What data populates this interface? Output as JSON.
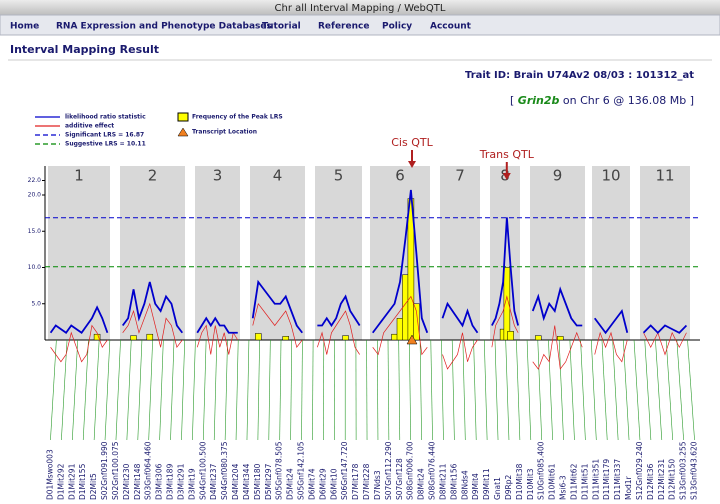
{
  "window_title": "Chr all Interval Mapping / WebQTL",
  "menu": [
    "Home",
    "RNA Expression and Phenotype Databases",
    "Tutorial",
    "Reference",
    "Policy",
    "Account"
  ],
  "page_title": "Interval Mapping Result",
  "trait_id": "Trait ID: Brain U74Av2 08/03 : 101312_at",
  "gene_line": {
    "prefix": "[",
    "gene": "Grin2b",
    "suffix": "on Chr 6 @ 136.08 Mb ]"
  },
  "chart_data": {
    "type": "line",
    "legend": [
      "likelihood ratio statistic",
      "additive effect",
      "Significant LRS = 16.87",
      "Suggestive LRS = 10.11",
      "Frequency of the Peak LRS",
      "Transcript Location"
    ],
    "significant": 16.87,
    "suggestive": 10.11,
    "annotations": [
      "Cis QTL",
      "Trans QTL"
    ],
    "ylim": [
      0,
      24
    ],
    "yticks": [
      {
        "value": 5,
        "label": "5.0"
      },
      {
        "value": 10,
        "label": "10.0"
      },
      {
        "value": 15,
        "label": "15.0"
      },
      {
        "value": 20,
        "label": "20.0"
      },
      {
        "value": 22,
        "label": "22.0"
      }
    ],
    "lrs_color": "#0000cc",
    "additive_color": "#e02020",
    "peak_color": "#ffff00",
    "chromosomes": [
      {
        "label": "1",
        "lrs": [
          1,
          2,
          1.5,
          1,
          2,
          1.5,
          1,
          2,
          3,
          4.5,
          3,
          1
        ],
        "additive": [
          -1,
          -2,
          -3,
          -2,
          1,
          -1,
          -3,
          -2,
          2,
          1,
          -1,
          0
        ],
        "peaks": [
          null,
          null,
          null,
          null,
          null,
          null,
          null,
          null,
          null,
          0.8,
          null,
          null
        ]
      },
      {
        "label": "2",
        "lrs": [
          2,
          3,
          7,
          3,
          5,
          8,
          5,
          4,
          6,
          5,
          2,
          1
        ],
        "additive": [
          1,
          2,
          4,
          1,
          3,
          5,
          2,
          -1,
          3,
          2,
          -1,
          0
        ],
        "peaks": [
          null,
          null,
          0.6,
          null,
          null,
          0.8,
          null,
          null,
          null,
          null,
          null,
          null
        ]
      },
      {
        "label": "3",
        "lrs": [
          1,
          2,
          3,
          2,
          3,
          2,
          2,
          1,
          1,
          1
        ],
        "additive": [
          -1,
          1,
          2,
          -2,
          2,
          -1,
          1,
          -2,
          1,
          0
        ],
        "peaks": [
          null,
          null,
          null,
          null,
          null,
          null,
          null,
          null,
          null,
          null
        ]
      },
      {
        "label": "4",
        "lrs": [
          3,
          8,
          7,
          6,
          5,
          5,
          6,
          4,
          2,
          1
        ],
        "additive": [
          2,
          5,
          4,
          3,
          2,
          3,
          4,
          2,
          -1,
          0
        ],
        "peaks": [
          null,
          0.9,
          null,
          null,
          null,
          null,
          0.5,
          null,
          null,
          null
        ]
      },
      {
        "label": "5",
        "lrs": [
          2,
          2,
          3,
          2,
          3,
          5,
          6,
          4,
          3,
          2
        ],
        "additive": [
          -1,
          1,
          -2,
          1,
          2,
          3,
          4,
          2,
          -1,
          -2
        ],
        "peaks": [
          null,
          null,
          null,
          null,
          null,
          null,
          0.6,
          null,
          null,
          null
        ]
      },
      {
        "label": "6",
        "lrs": [
          1,
          2,
          3,
          4,
          5,
          8,
          14,
          20.7,
          12,
          3,
          1
        ],
        "additive": [
          -1,
          -2,
          1,
          2,
          3,
          4,
          5,
          6,
          4,
          -2,
          -1
        ],
        "peaks": [
          null,
          null,
          null,
          null,
          0.8,
          3,
          9,
          19.5,
          5,
          null,
          null
        ]
      },
      {
        "label": "7",
        "lrs": [
          3,
          5,
          4,
          3,
          2,
          4,
          2,
          1
        ],
        "additive": [
          -2,
          -4,
          -3,
          -2,
          1,
          -3,
          -1,
          0
        ],
        "peaks": [
          null,
          null,
          null,
          null,
          null,
          null,
          null,
          null
        ]
      },
      {
        "label": "8",
        "lrs": [
          2,
          3,
          5,
          8,
          16.9,
          10,
          4,
          2
        ],
        "additive": [
          -1,
          2,
          3,
          4,
          6,
          4,
          2,
          1
        ],
        "peaks": [
          null,
          null,
          null,
          1.5,
          10,
          1.2,
          null,
          null
        ]
      },
      {
        "label": "9",
        "lrs": [
          4,
          6,
          3,
          5,
          4,
          7,
          5,
          3,
          2,
          2
        ],
        "additive": [
          -3,
          -4,
          -2,
          -3,
          2,
          -4,
          -3,
          -1,
          1,
          -1
        ],
        "peaks": [
          null,
          0.6,
          null,
          null,
          null,
          0.5,
          null,
          null,
          null,
          null
        ]
      },
      {
        "label": "10",
        "lrs": [
          3,
          2,
          1,
          2,
          3,
          4,
          1
        ],
        "additive": [
          -2,
          1,
          -1,
          1,
          -2,
          -3,
          0
        ],
        "peaks": [
          null,
          null,
          null,
          null,
          null,
          null,
          null
        ]
      },
      {
        "label": "11",
        "lrs": [
          1,
          2,
          1,
          2,
          1.5,
          1,
          2
        ],
        "additive": [
          1,
          -1,
          1,
          -2,
          1,
          -1,
          1
        ],
        "peaks": [
          null,
          null,
          null,
          null,
          null,
          null,
          null
        ]
      }
    ],
    "markers": [
      "D01Mswo003",
      "D1Mit292",
      "D1Mit291",
      "D1Mit155",
      "D2Mit5",
      "S02Gnf091.990",
      "S02Gnf100.075",
      "D2Mit230",
      "D2Mit148",
      "S03Gnf064.460",
      "D3Mit306",
      "D3Mit189",
      "D3Mit291",
      "D3Mit19",
      "S04Gnf100.500",
      "D4Mit237",
      "S04Gnf080.375",
      "D4Mit204",
      "D4Mit344",
      "D5Mit180",
      "D5Mit297",
      "S05Gnf078.505",
      "D5Mit24",
      "S05Gnf142.105",
      "D6Mit74",
      "D6Mit29",
      "D6Mit10",
      "S06Gnf147.720",
      "D7Mit178",
      "D7Mit228",
      "D7Nds3",
      "S07Gnf112.290",
      "S07Gnf128",
      "S08Gnf006.700",
      "D8Mit24",
      "S08Gnf076.440",
      "D8Mit211",
      "D8Mit156",
      "D8Nds4",
      "D9Mit4",
      "D9Mit11",
      "Gnat1",
      "D9Rp2",
      "D10Mit38",
      "D10Mit3",
      "S10Gnf085.400",
      "D10Mit61",
      "Msi6-3",
      "D11Mit62",
      "D11Mit51",
      "D11Mit351",
      "D11Mit179",
      "D11Mit337",
      "Mod1r",
      "S12Gnf029.240",
      "D12Mit36",
      "D12Mit231",
      "D12Mit150",
      "S13Gnf003.255",
      "S13Gnf043.620"
    ]
  }
}
